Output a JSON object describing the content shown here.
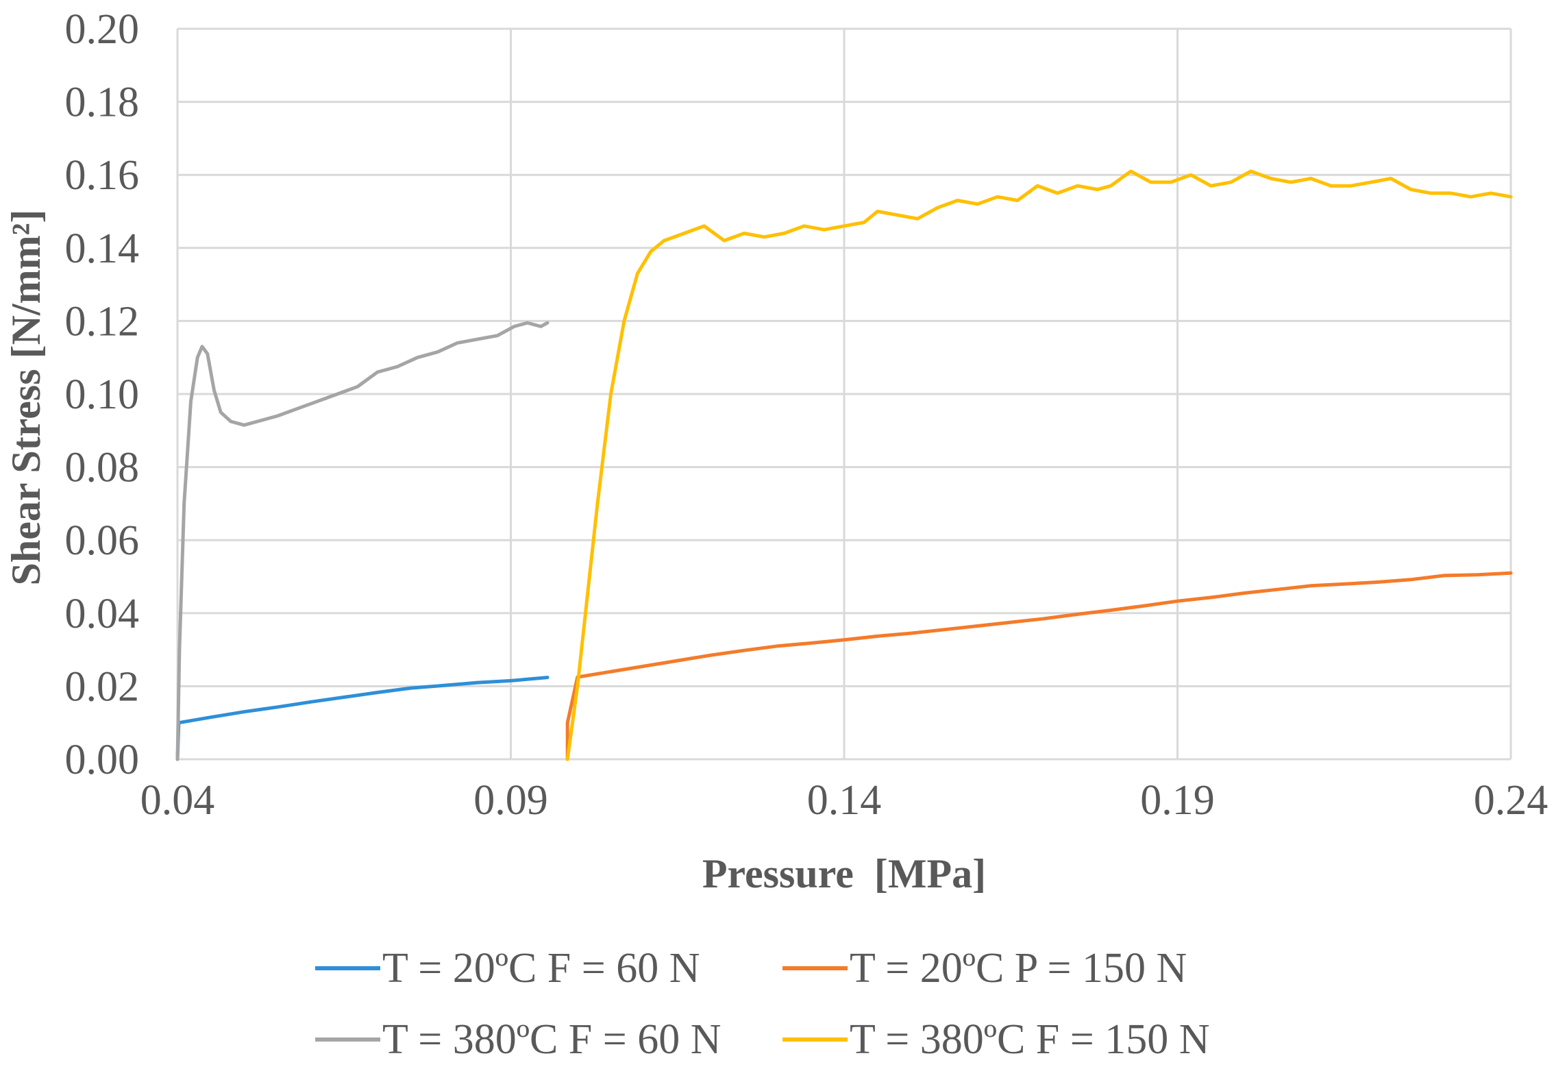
{
  "chart_data": {
    "type": "line",
    "title": "",
    "xlabel": "Pressure  [MPa]",
    "ylabel": "Shear Stress [N/mm²]",
    "xlim": [
      0.04,
      0.24
    ],
    "ylim": [
      0.0,
      0.2
    ],
    "x_ticks": [
      "0.04",
      "0.09",
      "0.14",
      "0.19",
      "0.24"
    ],
    "y_ticks": [
      "0.00",
      "0.02",
      "0.04",
      "0.06",
      "0.08",
      "0.10",
      "0.12",
      "0.14",
      "0.16",
      "0.18",
      "0.20"
    ],
    "grid": true,
    "legend_position": "bottom",
    "series": [
      {
        "name": "T = 20ºC F = 60 N",
        "color": "#2E8FD8",
        "points": [
          [
            0.04,
            0.0
          ],
          [
            0.0402,
            0.01
          ],
          [
            0.045,
            0.0115
          ],
          [
            0.05,
            0.013
          ],
          [
            0.055,
            0.0143
          ],
          [
            0.06,
            0.0157
          ],
          [
            0.065,
            0.017
          ],
          [
            0.07,
            0.0183
          ],
          [
            0.075,
            0.0195
          ],
          [
            0.08,
            0.0202
          ],
          [
            0.085,
            0.021
          ],
          [
            0.09,
            0.0215
          ],
          [
            0.0955,
            0.0224
          ]
        ]
      },
      {
        "name": "T = 20ºC P = 150 N",
        "color": "#F47B2A",
        "points": [
          [
            0.0985,
            0.0
          ],
          [
            0.0985,
            0.01
          ],
          [
            0.1,
            0.0225
          ],
          [
            0.105,
            0.024
          ],
          [
            0.11,
            0.0255
          ],
          [
            0.115,
            0.027
          ],
          [
            0.12,
            0.0285
          ],
          [
            0.125,
            0.0298
          ],
          [
            0.13,
            0.031
          ],
          [
            0.135,
            0.0318
          ],
          [
            0.14,
            0.0327
          ],
          [
            0.145,
            0.0337
          ],
          [
            0.15,
            0.0345
          ],
          [
            0.155,
            0.0355
          ],
          [
            0.16,
            0.0365
          ],
          [
            0.165,
            0.0375
          ],
          [
            0.17,
            0.0385
          ],
          [
            0.175,
            0.0397
          ],
          [
            0.18,
            0.0408
          ],
          [
            0.185,
            0.042
          ],
          [
            0.19,
            0.0433
          ],
          [
            0.195,
            0.0443
          ],
          [
            0.2,
            0.0455
          ],
          [
            0.205,
            0.0465
          ],
          [
            0.21,
            0.0475
          ],
          [
            0.215,
            0.048
          ],
          [
            0.22,
            0.0485
          ],
          [
            0.225,
            0.0492
          ],
          [
            0.23,
            0.0503
          ],
          [
            0.235,
            0.0505
          ],
          [
            0.24,
            0.051
          ]
        ]
      },
      {
        "name": "T = 380ºC F = 60 N",
        "color": "#A5A5A5",
        "points": [
          [
            0.04,
            0.0
          ],
          [
            0.0403,
            0.03
          ],
          [
            0.041,
            0.07
          ],
          [
            0.042,
            0.098
          ],
          [
            0.043,
            0.11
          ],
          [
            0.0437,
            0.113
          ],
          [
            0.0445,
            0.111
          ],
          [
            0.0455,
            0.101
          ],
          [
            0.0465,
            0.095
          ],
          [
            0.048,
            0.0925
          ],
          [
            0.05,
            0.0915
          ],
          [
            0.052,
            0.0925
          ],
          [
            0.055,
            0.094
          ],
          [
            0.058,
            0.096
          ],
          [
            0.061,
            0.098
          ],
          [
            0.064,
            0.1
          ],
          [
            0.067,
            0.102
          ],
          [
            0.07,
            0.106
          ],
          [
            0.073,
            0.1075
          ],
          [
            0.076,
            0.11
          ],
          [
            0.079,
            0.1115
          ],
          [
            0.082,
            0.114
          ],
          [
            0.085,
            0.115
          ],
          [
            0.088,
            0.116
          ],
          [
            0.0905,
            0.1185
          ],
          [
            0.0925,
            0.1195
          ],
          [
            0.0945,
            0.1185
          ],
          [
            0.0955,
            0.1195
          ]
        ]
      },
      {
        "name": "T = 380ºC F = 150 N",
        "color": "#FFC000",
        "points": [
          [
            0.0985,
            0.0
          ],
          [
            0.1,
            0.02
          ],
          [
            0.1015,
            0.045
          ],
          [
            0.103,
            0.07
          ],
          [
            0.105,
            0.1
          ],
          [
            0.107,
            0.12
          ],
          [
            0.109,
            0.133
          ],
          [
            0.111,
            0.139
          ],
          [
            0.113,
            0.142
          ],
          [
            0.116,
            0.144
          ],
          [
            0.119,
            0.146
          ],
          [
            0.122,
            0.142
          ],
          [
            0.125,
            0.144
          ],
          [
            0.128,
            0.143
          ],
          [
            0.131,
            0.144
          ],
          [
            0.134,
            0.146
          ],
          [
            0.137,
            0.145
          ],
          [
            0.14,
            0.146
          ],
          [
            0.143,
            0.147
          ],
          [
            0.145,
            0.15
          ],
          [
            0.148,
            0.149
          ],
          [
            0.151,
            0.148
          ],
          [
            0.154,
            0.151
          ],
          [
            0.157,
            0.153
          ],
          [
            0.16,
            0.152
          ],
          [
            0.163,
            0.154
          ],
          [
            0.166,
            0.153
          ],
          [
            0.169,
            0.157
          ],
          [
            0.172,
            0.155
          ],
          [
            0.175,
            0.157
          ],
          [
            0.178,
            0.156
          ],
          [
            0.18,
            0.157
          ],
          [
            0.183,
            0.161
          ],
          [
            0.186,
            0.158
          ],
          [
            0.189,
            0.158
          ],
          [
            0.192,
            0.16
          ],
          [
            0.195,
            0.157
          ],
          [
            0.198,
            0.158
          ],
          [
            0.201,
            0.161
          ],
          [
            0.204,
            0.159
          ],
          [
            0.207,
            0.158
          ],
          [
            0.21,
            0.159
          ],
          [
            0.213,
            0.157
          ],
          [
            0.216,
            0.157
          ],
          [
            0.219,
            0.158
          ],
          [
            0.222,
            0.159
          ],
          [
            0.225,
            0.156
          ],
          [
            0.228,
            0.155
          ],
          [
            0.231,
            0.155
          ],
          [
            0.234,
            0.154
          ],
          [
            0.237,
            0.155
          ],
          [
            0.24,
            0.154
          ]
        ]
      }
    ]
  }
}
